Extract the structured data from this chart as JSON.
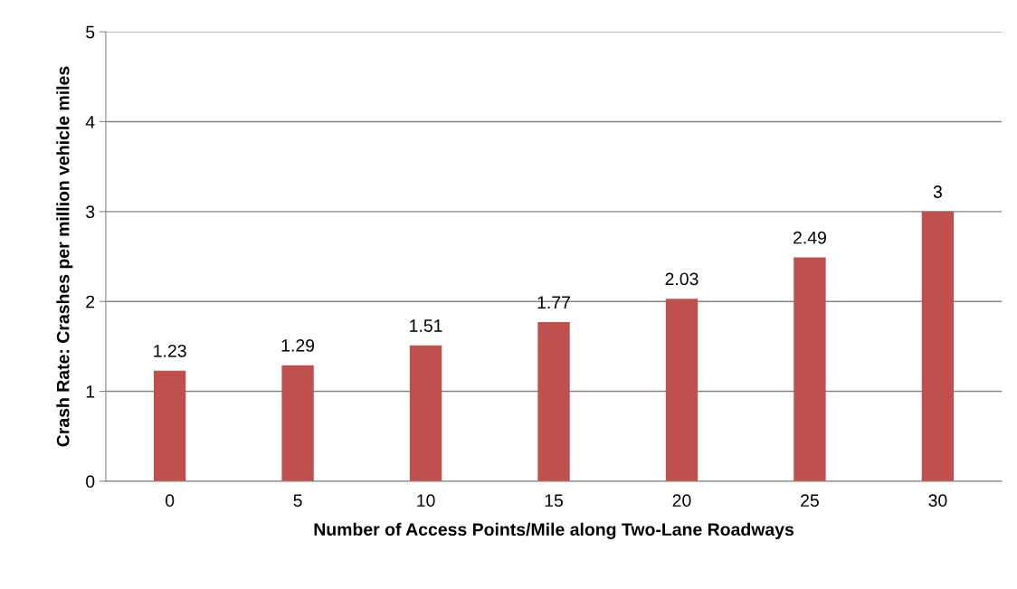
{
  "chart_data": {
    "type": "bar",
    "xlabel": "Number of Access Points/Mile along Two-Lane Roadways",
    "ylabel": "Crash Rate: Crashes per million vehicle miles",
    "categories": [
      "0",
      "5",
      "10",
      "15",
      "20",
      "25",
      "30"
    ],
    "values": [
      1.23,
      1.29,
      1.51,
      1.77,
      2.03,
      2.49,
      3
    ],
    "color": "#c0504d",
    "data_labels": true,
    "ylim": [
      0,
      5
    ],
    "yticks": [
      0,
      1,
      2,
      3,
      4,
      5
    ],
    "grid": "y",
    "legend": false
  }
}
